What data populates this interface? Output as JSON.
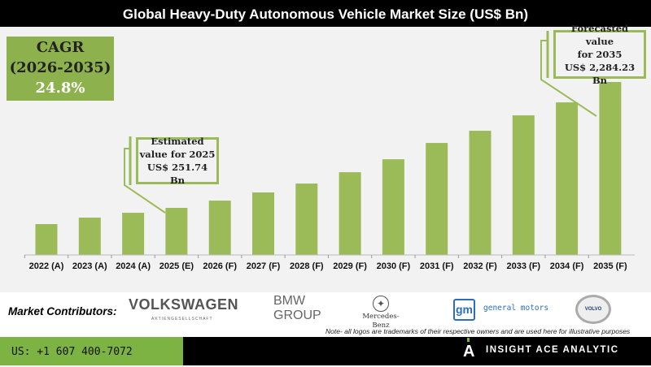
{
  "title": "Global Heavy-Duty Autonomous Vehicle Market Size (US$ Bn)",
  "cagr": {
    "label": "CAGR",
    "period": "(2026-2035)",
    "value": "24.8%"
  },
  "callouts": {
    "estimated": {
      "line1": "Estimated",
      "line2": "value for 2025",
      "line3": "US$ 251.74 Bn"
    },
    "forecast": {
      "line1": "Forecasted value",
      "line2": "for 2035",
      "line3": "US$ 2,284.23 Bn"
    }
  },
  "chart_data": {
    "type": "bar",
    "title": "Global Heavy-Duty Autonomous Vehicle Market Size (US$ Bn)",
    "categories": [
      "2022 (A)",
      "2023 (A)",
      "2024 (A)",
      "2025 (E)",
      "2026 (F)",
      "2027 (F)",
      "2028 (F)",
      "2029 (F)",
      "2030 (F)",
      "2031 (F)",
      "2032 (F)",
      "2033 (F)",
      "2034 (F)",
      "2035 (F)"
    ],
    "values": [
      123,
      170,
      209,
      251.74,
      321,
      407,
      510,
      655,
      838,
      1094,
      1303,
      1589,
      1847,
      2284.23
    ],
    "xlabel": "",
    "ylabel": "",
    "grid": false,
    "bar_color": "#9bbb59"
  },
  "footer": {
    "contributors_label": "Market Contributors:",
    "logos": {
      "vw": "VOLKSWAGEN",
      "vw_sub": "AKTIENGESELLSCHAFT",
      "bmw1": "BMW",
      "bmw2": "GROUP",
      "mercedes": "Mercedes-Benz",
      "gm": "gm",
      "gm_text": "general motors",
      "volvo": "VOLVO"
    },
    "note": "Note- all logos are trademarks of their respective owners and are used here for illustrative purposes",
    "phone": "US: +1 607 400-7072",
    "brand": "INSIGHT ACE ANALYTIC",
    "brand_icon": "A"
  },
  "colors": {
    "accent": "#9bbb59",
    "footer_green": "#7cb342"
  }
}
